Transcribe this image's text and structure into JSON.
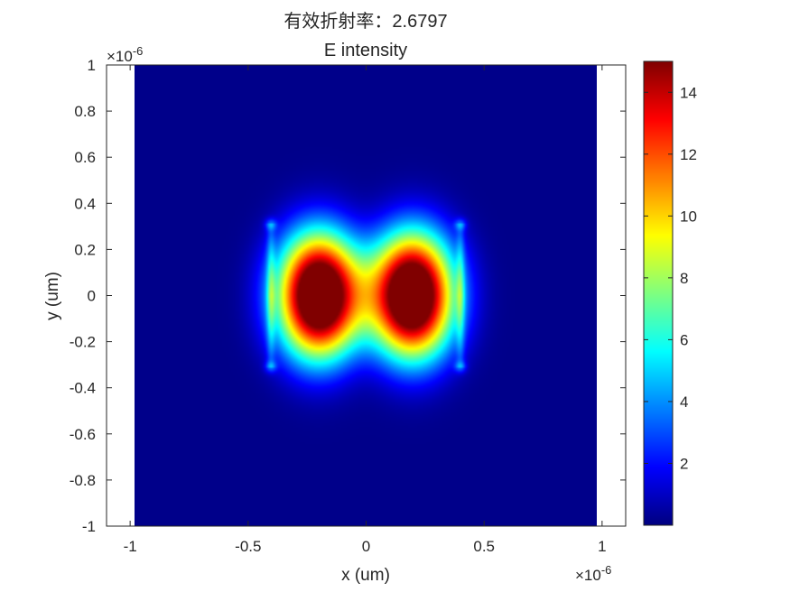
{
  "chart_data": {
    "type": "heatmap",
    "title_line1": "有效折射率：2.6797",
    "title_line2": "E intensity",
    "xlabel": "x (um)",
    "ylabel": "y (um)",
    "x_multiplier": "×10",
    "x_exponent": "-6",
    "y_multiplier": "×10",
    "y_exponent": "-6",
    "xlim": [
      -1.1,
      1.1
    ],
    "ylim": [
      -1,
      1
    ],
    "x_ticks": [
      {
        "value": -1,
        "label": "-1"
      },
      {
        "value": -0.5,
        "label": "-0.5"
      },
      {
        "value": 0,
        "label": "0"
      },
      {
        "value": 0.5,
        "label": "0.5"
      },
      {
        "value": 1,
        "label": "1"
      }
    ],
    "y_ticks": [
      {
        "value": 1,
        "label": "1"
      },
      {
        "value": 0.8,
        "label": "0.8"
      },
      {
        "value": 0.6,
        "label": "0.6"
      },
      {
        "value": 0.4,
        "label": "0.4"
      },
      {
        "value": 0.2,
        "label": "0.2"
      },
      {
        "value": 0,
        "label": "0"
      },
      {
        "value": -0.2,
        "label": "-0.2"
      },
      {
        "value": -0.4,
        "label": "-0.4"
      },
      {
        "value": -0.6,
        "label": "-0.6"
      },
      {
        "value": -0.8,
        "label": "-0.8"
      },
      {
        "value": -1,
        "label": "-1"
      }
    ],
    "data_extent_x": [
      -1,
      1
    ],
    "data_extent_y": [
      -1,
      1
    ],
    "colormap": "jet",
    "colorbar": {
      "min": 0,
      "max": 15,
      "ticks": [
        {
          "value": 2,
          "label": "2"
        },
        {
          "value": 4,
          "label": "4"
        },
        {
          "value": 6,
          "label": "6"
        },
        {
          "value": 8,
          "label": "8"
        },
        {
          "value": 10,
          "label": "10"
        },
        {
          "value": 12,
          "label": "12"
        },
        {
          "value": 14,
          "label": "14"
        }
      ]
    },
    "waveguides": [
      {
        "x": [
          -0.41,
          -0.005
        ],
        "y": [
          -0.31,
          0.31
        ]
      },
      {
        "x": [
          0.005,
          0.41
        ],
        "y": [
          -0.31,
          0.31
        ]
      }
    ],
    "peaks": [
      {
        "x": -0.2,
        "y": 0,
        "value": 15
      },
      {
        "x": 0.2,
        "y": 0,
        "value": 15
      }
    ],
    "grid": false,
    "legend": "colorbar-right"
  }
}
